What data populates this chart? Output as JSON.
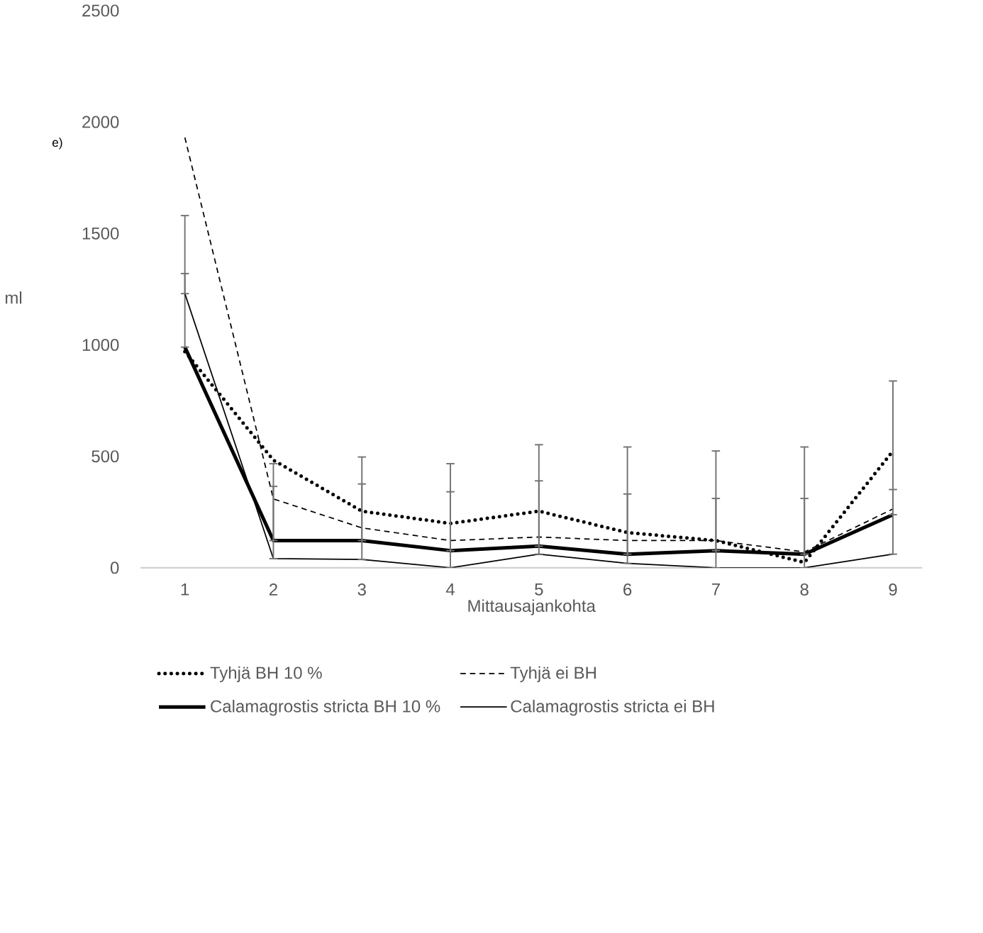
{
  "chart_data": {
    "type": "line",
    "xlabel": "Mittausajankohta",
    "ylabel": "ml",
    "annotations": [
      "e)"
    ],
    "categories": [
      "1",
      "2",
      "3",
      "4",
      "5",
      "6",
      "7",
      "8",
      "9"
    ],
    "series": [
      {
        "name": "Tyhjä BH 10 %",
        "color": "#000000",
        "line_style": "dotted",
        "values": [
          970,
          483,
          254,
          199,
          254,
          158,
          122,
          24,
          524
        ]
      },
      {
        "name": "Tyhjä ei BH",
        "color": "#000000",
        "line_style": "dashed",
        "values": [
          1930,
          309,
          179,
          122,
          138,
          122,
          122,
          71,
          264
        ]
      },
      {
        "name": "Calamagrostis stricta BH 10 %",
        "color": "#000000",
        "line_style": "solid",
        "values": [
          990,
          122,
          122,
          77,
          97,
          61,
          77,
          61,
          238
        ],
        "errors": [
          [
            990,
            1580
          ],
          [
            122,
            467
          ],
          [
            122,
            497
          ],
          [
            77,
            467
          ],
          [
            97,
            552
          ],
          [
            61,
            542
          ],
          [
            77,
            524
          ],
          [
            61,
            542
          ],
          [
            238,
            838
          ]
        ]
      },
      {
        "name": "Calamagrostis stricta ei BH",
        "color": "#000000",
        "line_style": "solid",
        "values": [
          1230,
          41,
          37,
          0,
          61,
          20,
          0,
          0,
          61
        ],
        "errors": [
          [
            1230,
            1320
          ],
          [
            41,
            365
          ],
          [
            37,
            376
          ],
          [
            0,
            341
          ],
          [
            61,
            390
          ],
          [
            20,
            331
          ],
          [
            0,
            311
          ],
          [
            0,
            311
          ],
          [
            61,
            351
          ]
        ]
      }
    ],
    "ylim": [
      0,
      2500
    ],
    "yticks": [
      0,
      500,
      1000,
      1500,
      2000,
      2500
    ],
    "grid": false,
    "legend": "bottom",
    "marker": "none"
  }
}
